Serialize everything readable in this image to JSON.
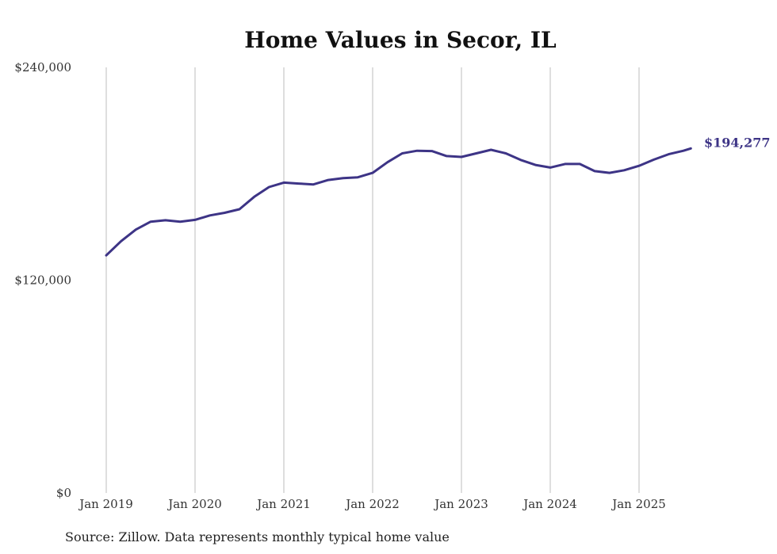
{
  "chart_data": {
    "type": "line",
    "title": "Home Values in Secor, IL",
    "xlabel": "",
    "ylabel": "",
    "ylim": [
      0,
      240000
    ],
    "y_ticks": [
      {
        "value": 0,
        "label": "$0"
      },
      {
        "value": 120000,
        "label": "$120,000"
      },
      {
        "value": 240000,
        "label": "$240,000"
      }
    ],
    "x_ticks": [
      {
        "value": 2019,
        "label": "Jan 2019"
      },
      {
        "value": 2020,
        "label": "Jan 2020"
      },
      {
        "value": 2021,
        "label": "Jan 2021"
      },
      {
        "value": 2022,
        "label": "Jan 2022"
      },
      {
        "value": 2023,
        "label": "Jan 2023"
      },
      {
        "value": 2024,
        "label": "Jan 2024"
      },
      {
        "value": 2025,
        "label": "Jan 2025"
      }
    ],
    "xlim": [
      2019,
      2026
    ],
    "grid": "vertical",
    "series": [
      {
        "name": "Typical home value",
        "color": "#3d3486",
        "x": [
          2019.0,
          2019.167,
          2019.333,
          2019.5,
          2019.667,
          2019.833,
          2020.0,
          2020.167,
          2020.333,
          2020.5,
          2020.667,
          2020.833,
          2021.0,
          2021.167,
          2021.333,
          2021.5,
          2021.667,
          2021.833,
          2022.0,
          2022.167,
          2022.333,
          2022.5,
          2022.667,
          2022.833,
          2023.0,
          2023.167,
          2023.333,
          2023.5,
          2023.667,
          2023.833,
          2024.0,
          2024.167,
          2024.333,
          2024.5,
          2024.667,
          2024.833,
          2025.0,
          2025.167,
          2025.333,
          2025.5,
          2025.583
        ],
        "values": [
          134000,
          142000,
          148500,
          153000,
          153800,
          153000,
          154000,
          156500,
          158000,
          160000,
          167000,
          172500,
          175000,
          174500,
          174000,
          176500,
          177500,
          178000,
          180500,
          186500,
          191500,
          193000,
          192800,
          190000,
          189500,
          191500,
          193500,
          191500,
          187800,
          185000,
          183500,
          185500,
          185500,
          181500,
          180500,
          182000,
          184500,
          188000,
          191000,
          193000,
          194277
        ]
      }
    ],
    "end_label": "$194,277"
  },
  "source": "Source: Zillow. Data represents monthly typical home value"
}
